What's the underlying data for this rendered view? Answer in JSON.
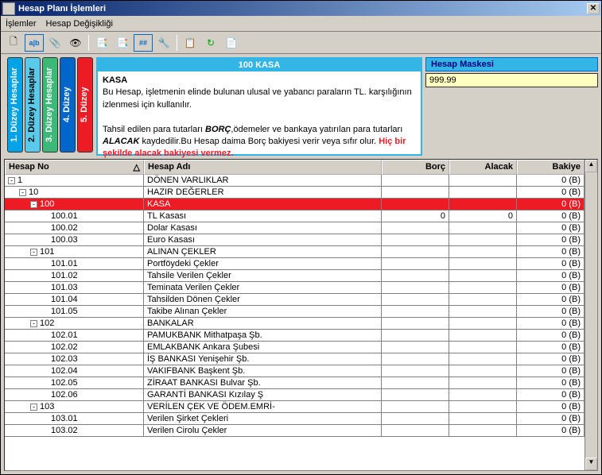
{
  "window": {
    "title": "Hesap Planı İşlemleri"
  },
  "menu": {
    "item1": "İşlemler",
    "item2": "Hesap Değişikliği"
  },
  "levels": {
    "l1": "1. Düzey Hesaplar",
    "l2": "2. Düzey Hesaplar",
    "l3": "3. Düzey Hesaplar",
    "l4": "4. Düzey",
    "l5": "5. Düzey"
  },
  "info": {
    "header": "100 KASA",
    "title": "KASA",
    "line1": "Bu Hesap, işletmenin elinde bulunan ulusal ve yabancı paraların TL. karşılığının izlenmesi için kullanılır.",
    "line2a": "Tahsil edilen para tutarları ",
    "line2b": "BORÇ",
    "line2c": ",ödemeler ve bankaya yatırılan para tutarları ",
    "line2d": "ALACAK",
    "line2e": " kaydedilir.Bu Hesap daima Borç bakiyesi verir veya sıfır olur. ",
    "line2f": "Hiç bir şekilde alacak bakiyesi vermez."
  },
  "mask": {
    "label": "Hesap Maskesi",
    "value": "999.99"
  },
  "grid": {
    "headers": {
      "no": "Hesap No",
      "ad": "Hesap Adı",
      "borc": "Borç",
      "alacak": "Alacak",
      "bakiye": "Bakiye"
    },
    "rows": [
      {
        "indent": 0,
        "exp": "-",
        "no": "1",
        "ad": "DÖNEN VARLIKLAR",
        "borc": "",
        "alacak": "",
        "bakiye": "0 (B)",
        "sel": false
      },
      {
        "indent": 1,
        "exp": "-",
        "no": "10",
        "ad": "HAZIR DEĞERLER",
        "borc": "",
        "alacak": "",
        "bakiye": "0 (B)",
        "sel": false
      },
      {
        "indent": 2,
        "exp": "-",
        "no": "100",
        "ad": "KASA",
        "borc": "",
        "alacak": "",
        "bakiye": "0 (B)",
        "sel": true
      },
      {
        "indent": 3,
        "exp": "",
        "no": "100.01",
        "ad": "TL Kasası",
        "borc": "0",
        "alacak": "0",
        "bakiye": "0 (B)",
        "sel": false
      },
      {
        "indent": 3,
        "exp": "",
        "no": "100.02",
        "ad": "Dolar Kasası",
        "borc": "",
        "alacak": "",
        "bakiye": "0 (B)",
        "sel": false
      },
      {
        "indent": 3,
        "exp": "",
        "no": "100.03",
        "ad": "Euro Kasası",
        "borc": "",
        "alacak": "",
        "bakiye": "0 (B)",
        "sel": false
      },
      {
        "indent": 2,
        "exp": "-",
        "no": "101",
        "ad": "ALINAN ÇEKLER",
        "borc": "",
        "alacak": "",
        "bakiye": "0 (B)",
        "sel": false
      },
      {
        "indent": 3,
        "exp": "",
        "no": "101.01",
        "ad": "Portföydeki Çekler",
        "borc": "",
        "alacak": "",
        "bakiye": "0 (B)",
        "sel": false
      },
      {
        "indent": 3,
        "exp": "",
        "no": "101.02",
        "ad": "Tahsile Verilen Çekler",
        "borc": "",
        "alacak": "",
        "bakiye": "0 (B)",
        "sel": false
      },
      {
        "indent": 3,
        "exp": "",
        "no": "101.03",
        "ad": "Teminata Verilen Çekler",
        "borc": "",
        "alacak": "",
        "bakiye": "0 (B)",
        "sel": false
      },
      {
        "indent": 3,
        "exp": "",
        "no": "101.04",
        "ad": "Tahsilden Dönen Çekler",
        "borc": "",
        "alacak": "",
        "bakiye": "0 (B)",
        "sel": false
      },
      {
        "indent": 3,
        "exp": "",
        "no": "101.05",
        "ad": "Takibe Alınan Çekler",
        "borc": "",
        "alacak": "",
        "bakiye": "0 (B)",
        "sel": false
      },
      {
        "indent": 2,
        "exp": "-",
        "no": "102",
        "ad": "BANKALAR",
        "borc": "",
        "alacak": "",
        "bakiye": "0 (B)",
        "sel": false
      },
      {
        "indent": 3,
        "exp": "",
        "no": "102.01",
        "ad": "PAMUKBANK Mithatpaşa Şb.",
        "borc": "",
        "alacak": "",
        "bakiye": "0 (B)",
        "sel": false
      },
      {
        "indent": 3,
        "exp": "",
        "no": "102.02",
        "ad": "EMLAKBANK Ankara Şubesi",
        "borc": "",
        "alacak": "",
        "bakiye": "0 (B)",
        "sel": false
      },
      {
        "indent": 3,
        "exp": "",
        "no": "102.03",
        "ad": "İŞ BANKASI Yenişehir Şb.",
        "borc": "",
        "alacak": "",
        "bakiye": "0 (B)",
        "sel": false
      },
      {
        "indent": 3,
        "exp": "",
        "no": "102.04",
        "ad": "VAKIFBANK Başkent Şb.",
        "borc": "",
        "alacak": "",
        "bakiye": "0 (B)",
        "sel": false
      },
      {
        "indent": 3,
        "exp": "",
        "no": "102.05",
        "ad": "ZİRAAT BANKASI Bulvar Şb.",
        "borc": "",
        "alacak": "",
        "bakiye": "0 (B)",
        "sel": false
      },
      {
        "indent": 3,
        "exp": "",
        "no": "102.06",
        "ad": "GARANTİ BANKASI Kızılay Ş",
        "borc": "",
        "alacak": "",
        "bakiye": "0 (B)",
        "sel": false
      },
      {
        "indent": 2,
        "exp": "-",
        "no": "103",
        "ad": "VERİLEN ÇEK VE ÖDEM.EMRİ-",
        "borc": "",
        "alacak": "",
        "bakiye": "0 (B)",
        "sel": false
      },
      {
        "indent": 3,
        "exp": "",
        "no": "103.01",
        "ad": "Verilen Şirket Çekleri",
        "borc": "",
        "alacak": "",
        "bakiye": "0 (B)",
        "sel": false
      },
      {
        "indent": 3,
        "exp": "",
        "no": "103.02",
        "ad": "Verilen Cirolu Çekler",
        "borc": "",
        "alacak": "",
        "bakiye": "0 (B)",
        "sel": false
      }
    ]
  }
}
